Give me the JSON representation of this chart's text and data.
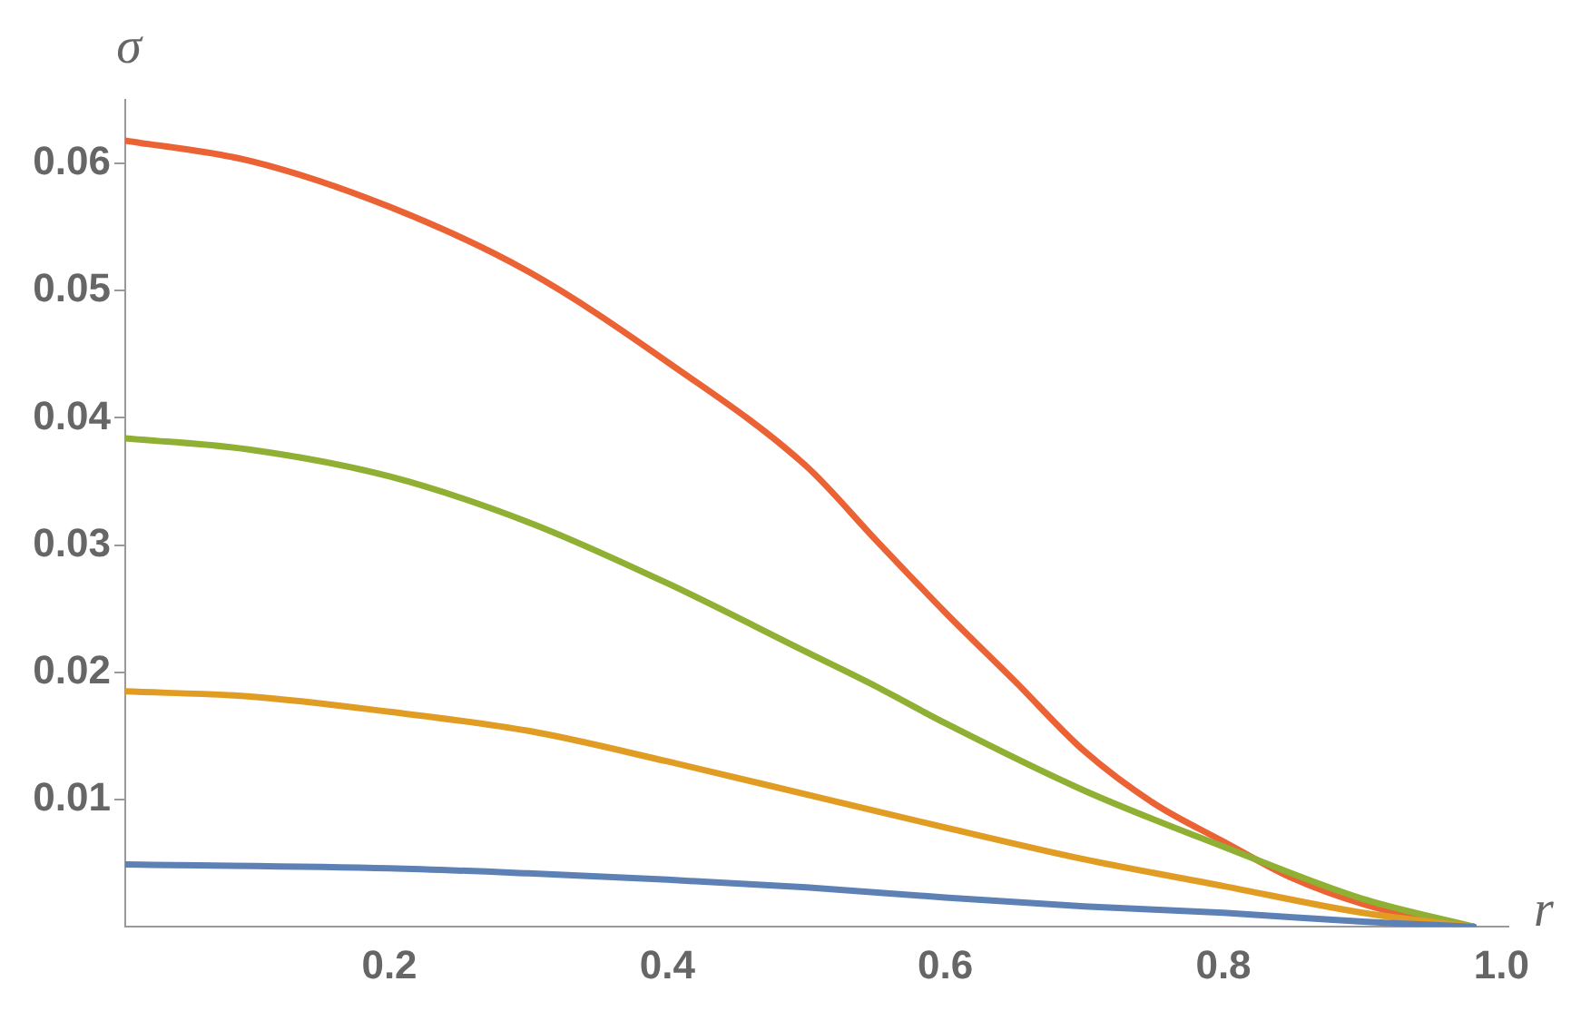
{
  "chart_data": {
    "type": "line",
    "xlabel": "r",
    "ylabel": "σ",
    "xlim": [
      0.01,
      1.005
    ],
    "ylim": [
      0,
      0.065
    ],
    "xticks": [
      0.2,
      0.4,
      0.6,
      {
        "value": 0.8,
        "label": "0.8"
      },
      {
        "value": 1,
        "label": "1.0"
      }
    ],
    "yticks": [
      0.01,
      0.02,
      0.03,
      0.04,
      0.05,
      0.06
    ],
    "grid": false,
    "legend": false,
    "marker": "none",
    "line_style": "solid",
    "series": [
      {
        "color": "#5e81b5",
        "x": [
          0.01,
          0.2,
          0.3,
          0.4,
          0.5,
          0.6,
          0.7,
          0.8,
          0.9,
          0.98
        ],
        "values": [
          0.0049,
          0.0046,
          0.0042,
          0.0037,
          0.0031,
          0.0023,
          0.0016,
          0.0011,
          0.0004,
          0
        ]
      },
      {
        "color": "#e19c24",
        "x": [
          0.01,
          0.1,
          0.2,
          0.3,
          0.4,
          0.5,
          0.6,
          0.7,
          0.8,
          0.9,
          0.98
        ],
        "values": [
          0.0185,
          0.0181,
          0.0169,
          0.0154,
          0.013,
          0.0104,
          0.0078,
          0.0053,
          0.0032,
          0.0011,
          0
        ]
      },
      {
        "color": "#8fb032",
        "x": [
          0.01,
          0.1,
          0.2,
          0.3,
          0.4,
          0.5,
          0.55,
          0.6,
          0.7,
          0.8,
          0.9,
          0.98
        ],
        "values": [
          0.0384,
          0.0375,
          0.0354,
          0.0318,
          0.027,
          0.0216,
          0.0189,
          0.016,
          0.0107,
          0.0063,
          0.0022,
          0
        ]
      },
      {
        "color": "#eb6235",
        "x": [
          0.01,
          0.1,
          0.2,
          0.3,
          0.4,
          0.5,
          0.55,
          0.6,
          0.65,
          0.7,
          0.75,
          0.8,
          0.85,
          0.9,
          0.95,
          0.98
        ],
        "values": [
          0.0618,
          0.0602,
          0.0566,
          0.0515,
          0.0444,
          0.0362,
          0.0304,
          0.0247,
          0.0193,
          0.0138,
          0.0097,
          0.0067,
          0.0038,
          0.0018,
          0.0005,
          0
        ]
      }
    ]
  }
}
